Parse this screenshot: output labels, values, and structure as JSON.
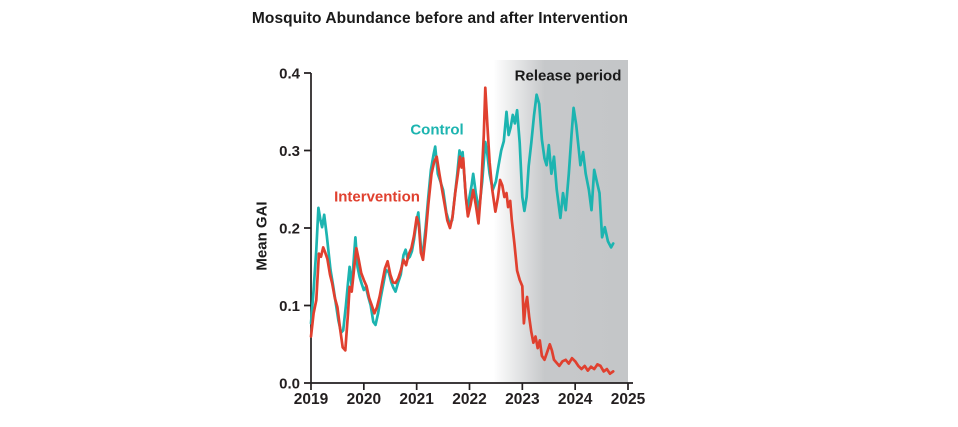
{
  "chart_data": {
    "type": "line",
    "title": "Mosquito Abundance before and after Intervention",
    "ylabel": "Mean GAI",
    "xlabel": "",
    "xlim": [
      2019,
      2025
    ],
    "ylim": [
      0.0,
      0.4
    ],
    "grid": false,
    "legend_position": "inline-labels",
    "x_axis": {
      "ticks": [
        2019,
        2020,
        2021,
        2022,
        2023,
        2024,
        2025
      ],
      "labels": [
        "2019",
        "2020",
        "2021",
        "2022",
        "2023",
        "2024",
        "2025"
      ]
    },
    "y_axis": {
      "ticks": [
        0.0,
        0.1,
        0.2,
        0.3,
        0.4
      ],
      "labels": [
        "0.0",
        "0.1",
        "0.2",
        "0.3",
        "0.4"
      ]
    },
    "release_period": {
      "label": "Release period",
      "start": 2022.45,
      "end": 2025
    },
    "colors": {
      "control": "#1CB4B0",
      "intervention": "#E0402F",
      "release_band": "#C4C6C8",
      "axis": "#231F20",
      "text": "#1A1A1A"
    },
    "series": [
      {
        "name": "Control",
        "color": "#1CB4B0",
        "points": [
          [
            2019.0,
            0.077
          ],
          [
            2019.05,
            0.12
          ],
          [
            2019.1,
            0.172
          ],
          [
            2019.14,
            0.226
          ],
          [
            2019.18,
            0.21
          ],
          [
            2019.21,
            0.201
          ],
          [
            2019.25,
            0.217
          ],
          [
            2019.3,
            0.19
          ],
          [
            2019.37,
            0.146
          ],
          [
            2019.42,
            0.125
          ],
          [
            2019.46,
            0.107
          ],
          [
            2019.52,
            0.08
          ],
          [
            2019.57,
            0.065
          ],
          [
            2019.61,
            0.068
          ],
          [
            2019.66,
            0.1
          ],
          [
            2019.7,
            0.129
          ],
          [
            2019.73,
            0.15
          ],
          [
            2019.77,
            0.124
          ],
          [
            2019.81,
            0.16
          ],
          [
            2019.84,
            0.188
          ],
          [
            2019.88,
            0.15
          ],
          [
            2019.92,
            0.137
          ],
          [
            2019.96,
            0.128
          ],
          [
            2020.0,
            0.12
          ],
          [
            2020.04,
            0.124
          ],
          [
            2020.08,
            0.112
          ],
          [
            2020.13,
            0.1
          ],
          [
            2020.18,
            0.079
          ],
          [
            2020.22,
            0.075
          ],
          [
            2020.27,
            0.09
          ],
          [
            2020.32,
            0.11
          ],
          [
            2020.37,
            0.128
          ],
          [
            2020.42,
            0.146
          ],
          [
            2020.47,
            0.143
          ],
          [
            2020.52,
            0.13
          ],
          [
            2020.56,
            0.123
          ],
          [
            2020.6,
            0.118
          ],
          [
            2020.65,
            0.13
          ],
          [
            2020.7,
            0.14
          ],
          [
            2020.75,
            0.165
          ],
          [
            2020.79,
            0.172
          ],
          [
            2020.83,
            0.16
          ],
          [
            2020.87,
            0.163
          ],
          [
            2020.91,
            0.17
          ],
          [
            2020.95,
            0.185
          ],
          [
            2021.0,
            0.21
          ],
          [
            2021.03,
            0.22
          ],
          [
            2021.08,
            0.175
          ],
          [
            2021.12,
            0.168
          ],
          [
            2021.17,
            0.2
          ],
          [
            2021.22,
            0.24
          ],
          [
            2021.27,
            0.275
          ],
          [
            2021.32,
            0.295
          ],
          [
            2021.35,
            0.305
          ],
          [
            2021.4,
            0.27
          ],
          [
            2021.45,
            0.26
          ],
          [
            2021.5,
            0.249
          ],
          [
            2021.56,
            0.22
          ],
          [
            2021.62,
            0.206
          ],
          [
            2021.67,
            0.21
          ],
          [
            2021.72,
            0.24
          ],
          [
            2021.77,
            0.27
          ],
          [
            2021.81,
            0.3
          ],
          [
            2021.84,
            0.285
          ],
          [
            2021.87,
            0.298
          ],
          [
            2021.92,
            0.25
          ],
          [
            2021.96,
            0.222
          ],
          [
            2022.0,
            0.24
          ],
          [
            2022.04,
            0.255
          ],
          [
            2022.07,
            0.27
          ],
          [
            2022.12,
            0.245
          ],
          [
            2022.18,
            0.222
          ],
          [
            2022.24,
            0.26
          ],
          [
            2022.3,
            0.311
          ],
          [
            2022.33,
            0.3
          ],
          [
            2022.38,
            0.27
          ],
          [
            2022.44,
            0.249
          ],
          [
            2022.5,
            0.26
          ],
          [
            2022.55,
            0.281
          ],
          [
            2022.6,
            0.3
          ],
          [
            2022.65,
            0.312
          ],
          [
            2022.7,
            0.35
          ],
          [
            2022.74,
            0.32
          ],
          [
            2022.78,
            0.33
          ],
          [
            2022.82,
            0.346
          ],
          [
            2022.86,
            0.335
          ],
          [
            2022.9,
            0.352
          ],
          [
            2022.95,
            0.31
          ],
          [
            2023.0,
            0.24
          ],
          [
            2023.04,
            0.222
          ],
          [
            2023.08,
            0.24
          ],
          [
            2023.12,
            0.28
          ],
          [
            2023.17,
            0.31
          ],
          [
            2023.22,
            0.345
          ],
          [
            2023.27,
            0.372
          ],
          [
            2023.32,
            0.36
          ],
          [
            2023.37,
            0.314
          ],
          [
            2023.42,
            0.29
          ],
          [
            2023.46,
            0.281
          ],
          [
            2023.5,
            0.307
          ],
          [
            2023.55,
            0.27
          ],
          [
            2023.6,
            0.292
          ],
          [
            2023.65,
            0.25
          ],
          [
            2023.72,
            0.213
          ],
          [
            2023.77,
            0.245
          ],
          [
            2023.82,
            0.223
          ],
          [
            2023.88,
            0.27
          ],
          [
            2023.93,
            0.32
          ],
          [
            2023.97,
            0.355
          ],
          [
            2024.02,
            0.333
          ],
          [
            2024.07,
            0.3
          ],
          [
            2024.1,
            0.281
          ],
          [
            2024.15,
            0.298
          ],
          [
            2024.2,
            0.27
          ],
          [
            2024.26,
            0.249
          ],
          [
            2024.31,
            0.223
          ],
          [
            2024.36,
            0.275
          ],
          [
            2024.41,
            0.26
          ],
          [
            2024.46,
            0.245
          ],
          [
            2024.51,
            0.188
          ],
          [
            2024.56,
            0.201
          ],
          [
            2024.62,
            0.183
          ],
          [
            2024.68,
            0.175
          ],
          [
            2024.72,
            0.18
          ]
        ]
      },
      {
        "name": "Intervention",
        "color": "#E0402F",
        "points": [
          [
            2019.0,
            0.06
          ],
          [
            2019.05,
            0.09
          ],
          [
            2019.1,
            0.107
          ],
          [
            2019.15,
            0.167
          ],
          [
            2019.19,
            0.163
          ],
          [
            2019.23,
            0.175
          ],
          [
            2019.27,
            0.168
          ],
          [
            2019.31,
            0.16
          ],
          [
            2019.36,
            0.14
          ],
          [
            2019.4,
            0.129
          ],
          [
            2019.45,
            0.11
          ],
          [
            2019.5,
            0.098
          ],
          [
            2019.55,
            0.07
          ],
          [
            2019.6,
            0.046
          ],
          [
            2019.65,
            0.042
          ],
          [
            2019.7,
            0.09
          ],
          [
            2019.73,
            0.124
          ],
          [
            2019.77,
            0.118
          ],
          [
            2019.82,
            0.15
          ],
          [
            2019.86,
            0.174
          ],
          [
            2019.9,
            0.16
          ],
          [
            2019.95,
            0.142
          ],
          [
            2020.0,
            0.133
          ],
          [
            2020.05,
            0.125
          ],
          [
            2020.1,
            0.11
          ],
          [
            2020.15,
            0.1
          ],
          [
            2020.2,
            0.09
          ],
          [
            2020.25,
            0.098
          ],
          [
            2020.3,
            0.112
          ],
          [
            2020.35,
            0.13
          ],
          [
            2020.4,
            0.148
          ],
          [
            2020.45,
            0.157
          ],
          [
            2020.5,
            0.14
          ],
          [
            2020.55,
            0.13
          ],
          [
            2020.6,
            0.129
          ],
          [
            2020.65,
            0.135
          ],
          [
            2020.7,
            0.145
          ],
          [
            2020.75,
            0.159
          ],
          [
            2020.8,
            0.152
          ],
          [
            2020.85,
            0.166
          ],
          [
            2020.9,
            0.174
          ],
          [
            2020.95,
            0.19
          ],
          [
            2021.0,
            0.214
          ],
          [
            2021.04,
            0.205
          ],
          [
            2021.08,
            0.168
          ],
          [
            2021.12,
            0.159
          ],
          [
            2021.17,
            0.19
          ],
          [
            2021.22,
            0.23
          ],
          [
            2021.28,
            0.27
          ],
          [
            2021.33,
            0.285
          ],
          [
            2021.38,
            0.292
          ],
          [
            2021.43,
            0.27
          ],
          [
            2021.48,
            0.25
          ],
          [
            2021.53,
            0.23
          ],
          [
            2021.58,
            0.21
          ],
          [
            2021.63,
            0.2
          ],
          [
            2021.68,
            0.215
          ],
          [
            2021.73,
            0.245
          ],
          [
            2021.78,
            0.27
          ],
          [
            2021.82,
            0.292
          ],
          [
            2021.85,
            0.278
          ],
          [
            2021.88,
            0.29
          ],
          [
            2021.93,
            0.24
          ],
          [
            2021.97,
            0.215
          ],
          [
            2022.02,
            0.23
          ],
          [
            2022.07,
            0.249
          ],
          [
            2022.12,
            0.23
          ],
          [
            2022.17,
            0.206
          ],
          [
            2022.22,
            0.25
          ],
          [
            2022.27,
            0.32
          ],
          [
            2022.3,
            0.381
          ],
          [
            2022.34,
            0.33
          ],
          [
            2022.38,
            0.285
          ],
          [
            2022.43,
            0.25
          ],
          [
            2022.49,
            0.221
          ],
          [
            2022.54,
            0.24
          ],
          [
            2022.58,
            0.262
          ],
          [
            2022.62,
            0.255
          ],
          [
            2022.66,
            0.24
          ],
          [
            2022.7,
            0.245
          ],
          [
            2022.73,
            0.227
          ],
          [
            2022.77,
            0.235
          ],
          [
            2022.8,
            0.21
          ],
          [
            2022.85,
            0.18
          ],
          [
            2022.9,
            0.145
          ],
          [
            2022.95,
            0.133
          ],
          [
            2023.0,
            0.125
          ],
          [
            2023.03,
            0.077
          ],
          [
            2023.06,
            0.1
          ],
          [
            2023.09,
            0.111
          ],
          [
            2023.13,
            0.085
          ],
          [
            2023.17,
            0.066
          ],
          [
            2023.21,
            0.052
          ],
          [
            2023.25,
            0.06
          ],
          [
            2023.29,
            0.045
          ],
          [
            2023.33,
            0.055
          ],
          [
            2023.37,
            0.035
          ],
          [
            2023.42,
            0.03
          ],
          [
            2023.47,
            0.04
          ],
          [
            2023.52,
            0.05
          ],
          [
            2023.56,
            0.042
          ],
          [
            2023.6,
            0.03
          ],
          [
            2023.65,
            0.026
          ],
          [
            2023.7,
            0.022
          ],
          [
            2023.76,
            0.028
          ],
          [
            2023.82,
            0.03
          ],
          [
            2023.88,
            0.025
          ],
          [
            2023.94,
            0.032
          ],
          [
            2024.0,
            0.028
          ],
          [
            2024.06,
            0.022
          ],
          [
            2024.12,
            0.018
          ],
          [
            2024.18,
            0.022
          ],
          [
            2024.24,
            0.016
          ],
          [
            2024.3,
            0.021
          ],
          [
            2024.36,
            0.018
          ],
          [
            2024.42,
            0.024
          ],
          [
            2024.48,
            0.022
          ],
          [
            2024.54,
            0.015
          ],
          [
            2024.6,
            0.018
          ],
          [
            2024.66,
            0.012
          ],
          [
            2024.72,
            0.015
          ]
        ]
      }
    ]
  }
}
